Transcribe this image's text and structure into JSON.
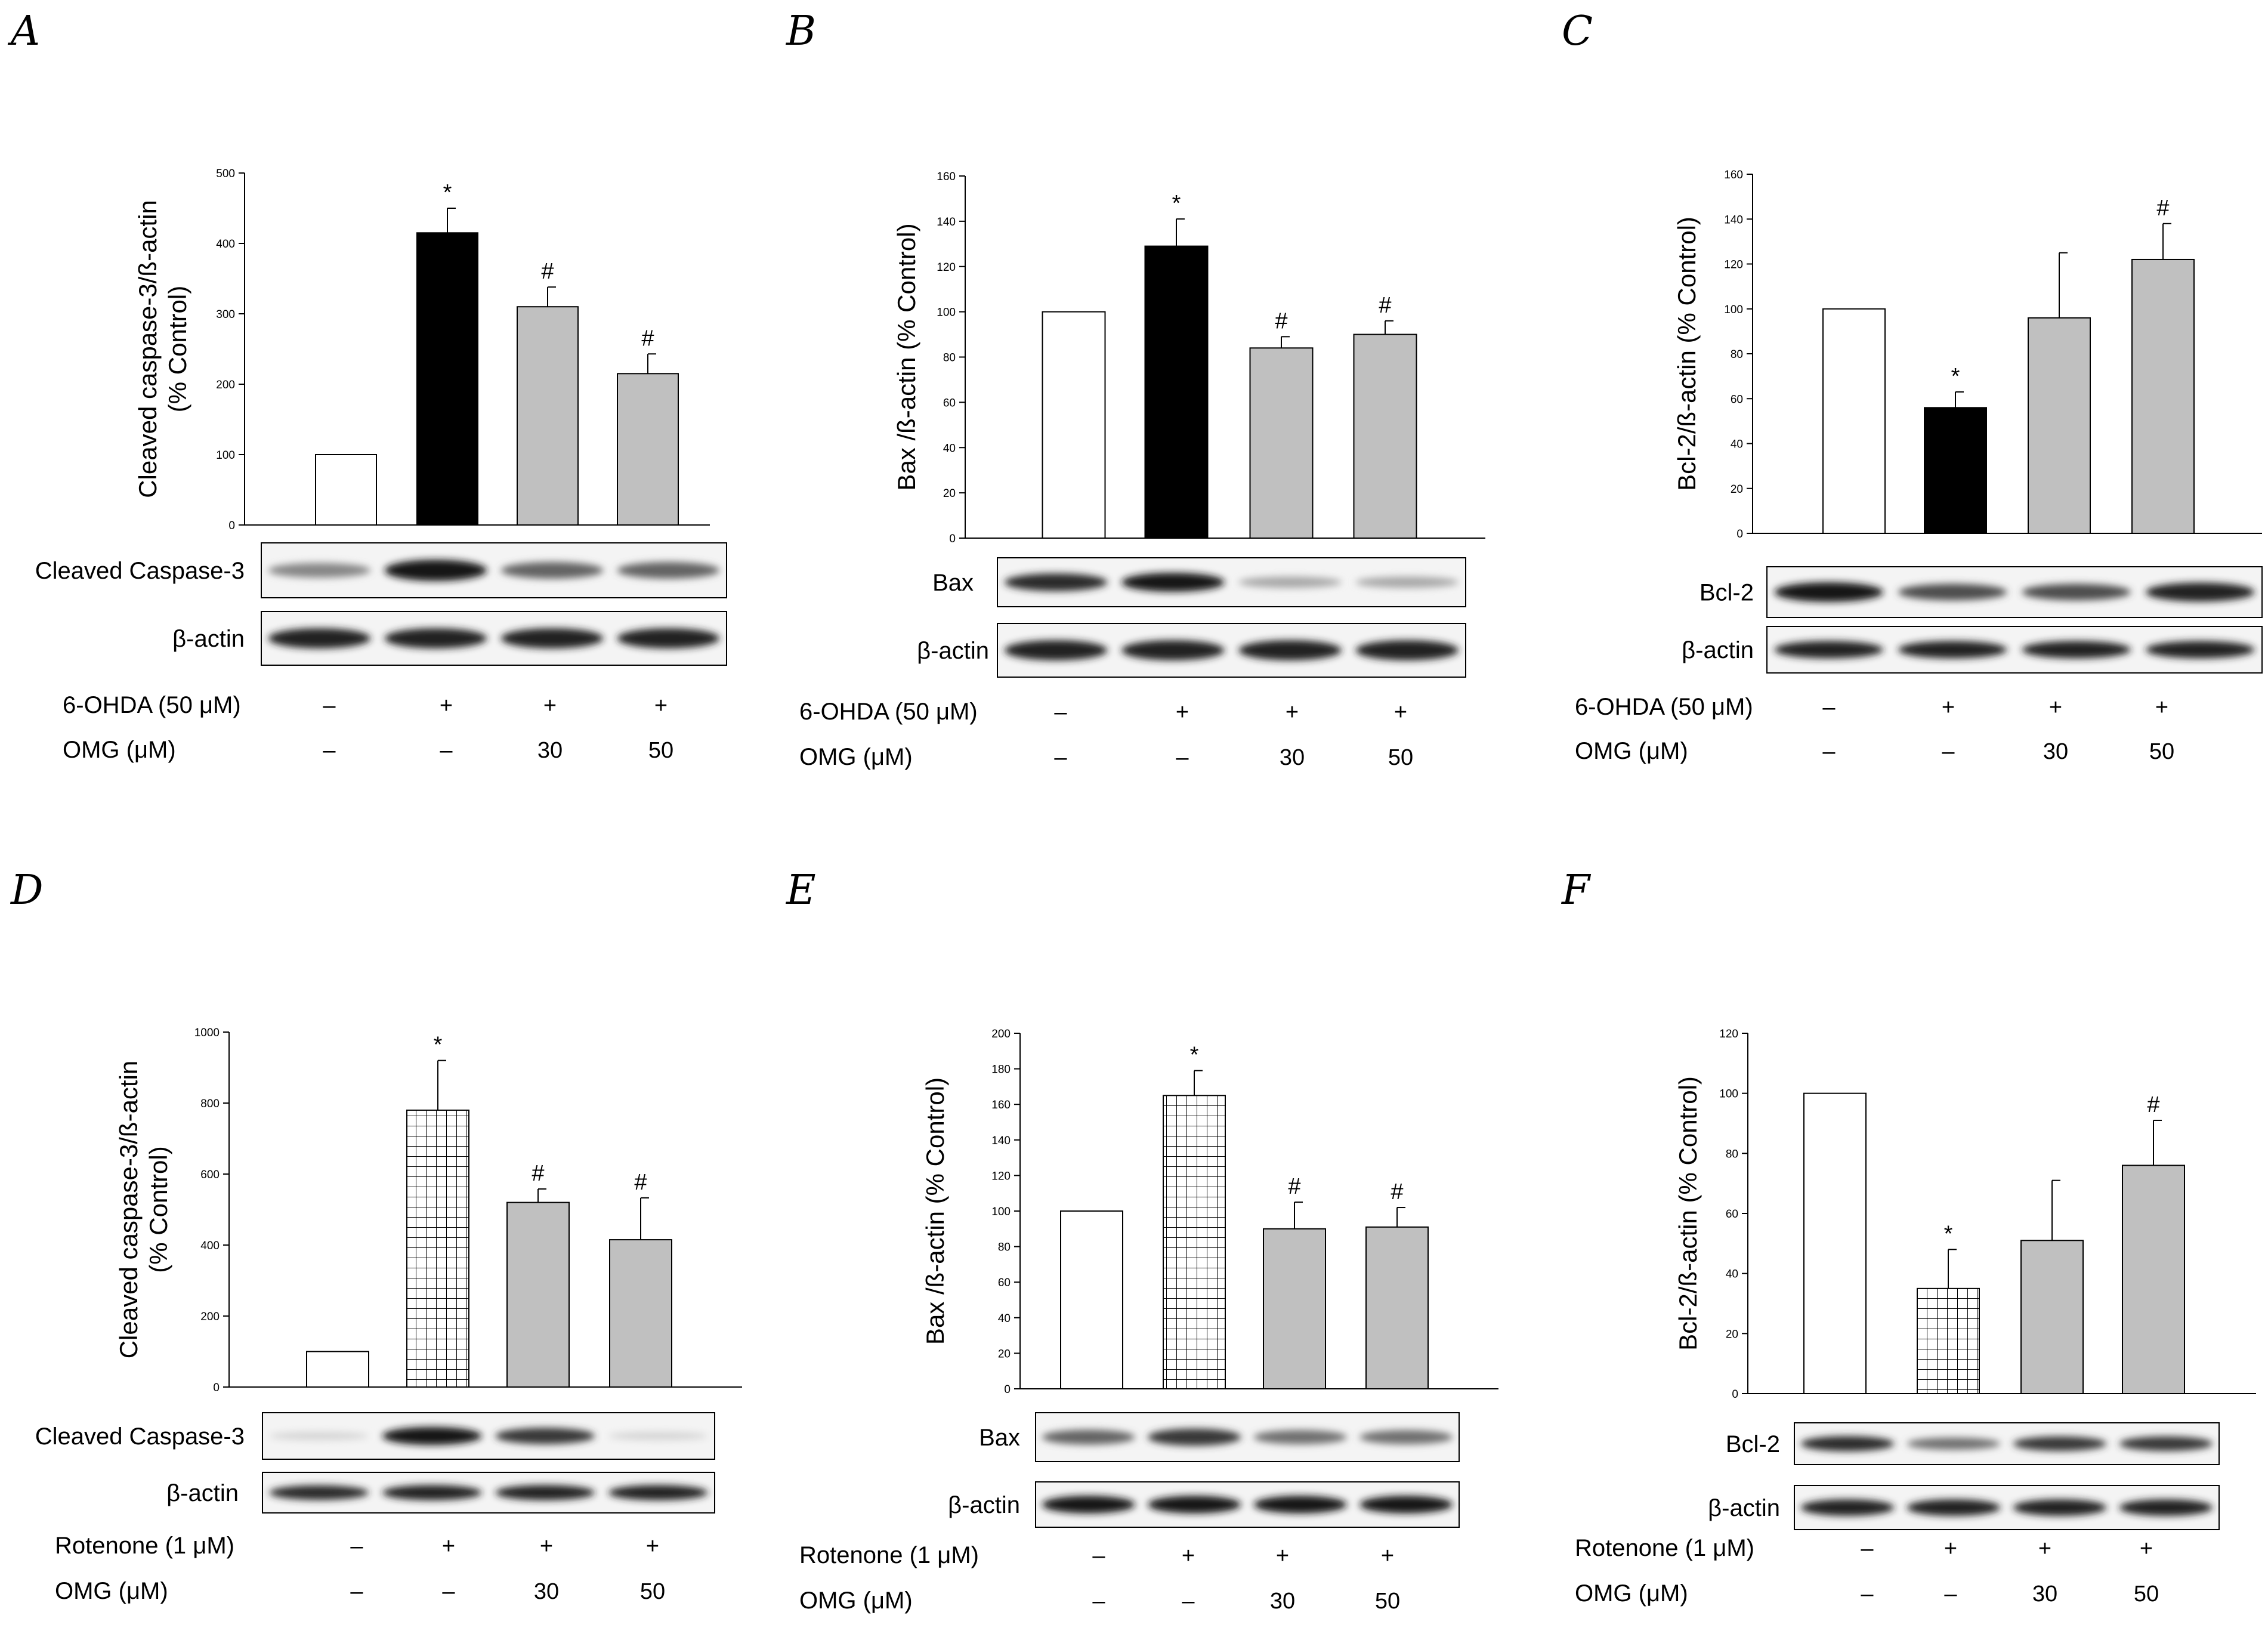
{
  "figure": {
    "panels": [
      {
        "letter": "A",
        "ylabel_lines": [
          "Cleaved caspase-3/ß-actin",
          "(% Control)"
        ],
        "blot_rows": [
          {
            "label": "Cleaved Caspase-3",
            "intensities": [
              0.45,
              0.95,
              0.6,
              0.6
            ]
          },
          {
            "label": "β-actin",
            "intensities": [
              0.9,
              0.9,
              0.9,
              0.9
            ]
          }
        ],
        "conditions": [
          {
            "label": "6-OHDA (50 μM)",
            "values": [
              "–",
              "+",
              "+",
              "+"
            ]
          },
          {
            "label": "OMG (μM)",
            "values": [
              "–",
              "–",
              "30",
              "50"
            ]
          }
        ]
      },
      {
        "letter": "B",
        "ylabel_lines": [
          "Bax /ß-actin (% Control)"
        ],
        "blot_rows": [
          {
            "label": "Bax",
            "intensities": [
              0.85,
              0.95,
              0.3,
              0.3
            ]
          },
          {
            "label": "β-actin",
            "intensities": [
              0.9,
              0.9,
              0.9,
              0.9
            ]
          }
        ],
        "conditions": [
          {
            "label": "6-OHDA (50 μM)",
            "values": [
              "–",
              "+",
              "+",
              "+"
            ]
          },
          {
            "label": "OMG (μM)",
            "values": [
              "–",
              "–",
              "30",
              "50"
            ]
          }
        ]
      },
      {
        "letter": "C",
        "ylabel_lines": [
          "Bcl-2/ß-actin (% Control)"
        ],
        "blot_rows": [
          {
            "label": "Bcl-2",
            "intensities": [
              0.95,
              0.7,
              0.7,
              0.9
            ]
          },
          {
            "label": "β-actin",
            "intensities": [
              0.9,
              0.9,
              0.9,
              0.9
            ]
          }
        ],
        "conditions": [
          {
            "label": "6-OHDA (50 μM)",
            "values": [
              "–",
              "+",
              "+",
              "+"
            ]
          },
          {
            "label": "OMG (μM)",
            "values": [
              "–",
              "–",
              "30",
              "50"
            ]
          }
        ]
      },
      {
        "letter": "D",
        "ylabel_lines": [
          "Cleaved caspase-3/ß-actin",
          "(% Control)"
        ],
        "blot_rows": [
          {
            "label": "Cleaved Caspase-3",
            "intensities": [
              0.1,
              0.95,
              0.8,
              0.1
            ]
          },
          {
            "label": "β-actin",
            "intensities": [
              0.85,
              0.9,
              0.9,
              0.9
            ]
          }
        ],
        "conditions": [
          {
            "label": "Rotenone (1 μM)",
            "values": [
              "–",
              "+",
              "+",
              "+"
            ]
          },
          {
            "label": "OMG (μM)",
            "values": [
              "–",
              "–",
              "30",
              "50"
            ]
          }
        ]
      },
      {
        "letter": "E",
        "ylabel_lines": [
          "Bax /ß-actin (% Control)"
        ],
        "blot_rows": [
          {
            "label": "Bax",
            "intensities": [
              0.6,
              0.8,
              0.55,
              0.55
            ]
          },
          {
            "label": "β-actin",
            "intensities": [
              0.95,
              0.95,
              0.95,
              0.95
            ]
          }
        ],
        "conditions": [
          {
            "label": "Rotenone (1 μM)",
            "values": [
              "–",
              "+",
              "+",
              "+"
            ]
          },
          {
            "label": "OMG (μM)",
            "values": [
              "–",
              "–",
              "30",
              "50"
            ]
          }
        ]
      },
      {
        "letter": "F",
        "ylabel_lines": [
          "Bcl-2/ß-actin (% Control)"
        ],
        "blot_rows": [
          {
            "label": "Bcl-2",
            "intensities": [
              0.85,
              0.55,
              0.8,
              0.8
            ]
          },
          {
            "label": "β-actin",
            "intensities": [
              0.9,
              0.9,
              0.9,
              0.9
            ]
          }
        ],
        "conditions": [
          {
            "label": "Rotenone (1 μM)",
            "values": [
              "–",
              "+",
              "+",
              "+"
            ]
          },
          {
            "label": "OMG (μM)",
            "values": [
              "–",
              "–",
              "30",
              "50"
            ]
          }
        ]
      }
    ]
  },
  "chart_data": [
    {
      "panel": "A",
      "type": "bar",
      "categories": [
        "Control",
        "6-OHDA",
        "6-OHDA + OMG 30",
        "6-OHDA + OMG 50"
      ],
      "values": [
        100,
        415,
        310,
        215
      ],
      "errors": [
        0,
        35,
        28,
        28
      ],
      "fills": [
        "white",
        "black",
        "gray",
        "gray"
      ],
      "annotations": [
        "",
        "*",
        "#",
        "#"
      ],
      "ylabel": "Cleaved caspase-3/ß-actin (% Control)",
      "ylim": [
        0,
        500
      ],
      "yticks": [
        0,
        100,
        200,
        300,
        400,
        500
      ]
    },
    {
      "panel": "B",
      "type": "bar",
      "categories": [
        "Control",
        "6-OHDA",
        "6-OHDA + OMG 30",
        "6-OHDA + OMG 50"
      ],
      "values": [
        100,
        129,
        84,
        90
      ],
      "errors": [
        0,
        12,
        5,
        6
      ],
      "fills": [
        "white",
        "black",
        "gray",
        "gray"
      ],
      "annotations": [
        "",
        "*",
        "#",
        "#"
      ],
      "ylabel": "Bax /ß-actin (% Control)",
      "ylim": [
        0,
        160
      ],
      "yticks": [
        0,
        20,
        40,
        60,
        80,
        100,
        120,
        140,
        160
      ]
    },
    {
      "panel": "C",
      "type": "bar",
      "categories": [
        "Control",
        "6-OHDA",
        "6-OHDA + OMG 30",
        "6-OHDA + OMG 50"
      ],
      "values": [
        100,
        56,
        96,
        122
      ],
      "errors": [
        0,
        7,
        29,
        16
      ],
      "fills": [
        "white",
        "black",
        "gray",
        "gray"
      ],
      "annotations": [
        "",
        "*",
        "",
        "#"
      ],
      "ylabel": "Bcl-2/ß-actin (% Control)",
      "ylim": [
        0,
        160
      ],
      "yticks": [
        0,
        20,
        40,
        60,
        80,
        100,
        120,
        140,
        160
      ]
    },
    {
      "panel": "D",
      "type": "bar",
      "categories": [
        "Control",
        "Rotenone",
        "Rotenone + OMG 30",
        "Rotenone + OMG 50"
      ],
      "values": [
        100,
        780,
        520,
        415
      ],
      "errors": [
        0,
        140,
        38,
        118
      ],
      "fills": [
        "white",
        "grid",
        "gray",
        "gray"
      ],
      "annotations": [
        "",
        "*",
        "#",
        "#"
      ],
      "ylabel": "Cleaved caspase-3/ß-actin (% Control)",
      "ylim": [
        0,
        1000
      ],
      "yticks": [
        0,
        200,
        400,
        600,
        800,
        1000
      ]
    },
    {
      "panel": "E",
      "type": "bar",
      "categories": [
        "Control",
        "Rotenone",
        "Rotenone + OMG 30",
        "Rotenone + OMG 50"
      ],
      "values": [
        100,
        165,
        90,
        91
      ],
      "errors": [
        0,
        14,
        15,
        11
      ],
      "fills": [
        "white",
        "grid",
        "gray",
        "gray"
      ],
      "annotations": [
        "",
        "*",
        "#",
        "#"
      ],
      "ylabel": "Bax /ß-actin (% Control)",
      "ylim": [
        0,
        200
      ],
      "yticks": [
        0,
        20,
        40,
        60,
        80,
        100,
        120,
        140,
        160,
        180,
        200
      ]
    },
    {
      "panel": "F",
      "type": "bar",
      "categories": [
        "Control",
        "Rotenone",
        "Rotenone + OMG 30",
        "Rotenone + OMG 50"
      ],
      "values": [
        100,
        35,
        51,
        76
      ],
      "errors": [
        0,
        13,
        20,
        15
      ],
      "fills": [
        "white",
        "grid",
        "gray",
        "gray"
      ],
      "annotations": [
        "",
        "*",
        "",
        "#"
      ],
      "ylabel": "Bcl-2/ß-actin (% Control)",
      "ylim": [
        0,
        120
      ],
      "yticks": [
        0,
        20,
        40,
        60,
        80,
        100,
        120
      ]
    }
  ]
}
